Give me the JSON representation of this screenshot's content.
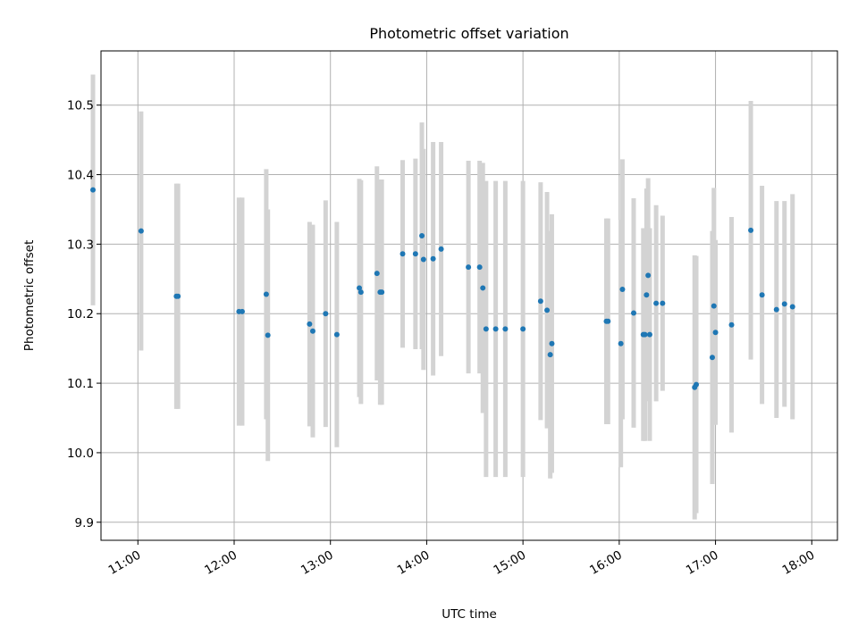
{
  "chart_data": {
    "type": "scatter",
    "title": "Photometric offset variation",
    "xlabel": "UTC time",
    "ylabel": "Photometric offset",
    "x_tick_labels": [
      "11:00",
      "12:00",
      "13:00",
      "14:00",
      "15:00",
      "16:00",
      "17:00",
      "18:00"
    ],
    "y_tick_labels": [
      "9.9",
      "10.0",
      "10.1",
      "10.2",
      "10.3",
      "10.4",
      "10.5"
    ],
    "xlim": [
      "10:37",
      "18:16"
    ],
    "ylim": [
      9.874,
      10.578
    ],
    "grid": true,
    "legend": "none",
    "marker_color": "#1f77b4",
    "errorbar_color": "#d3d3d3",
    "series": [
      {
        "x": [
          "10:32",
          "11:02",
          "11:24",
          "11:25",
          "12:03",
          "12:05",
          "12:20",
          "12:21",
          "12:47",
          "12:49",
          "12:57",
          "13:04",
          "13:18",
          "13:19",
          "13:29",
          "13:31",
          "13:32",
          "13:45",
          "13:53",
          "13:57",
          "13:58",
          "14:04",
          "14:09",
          "14:26",
          "14:33",
          "14:35",
          "14:37",
          "14:43",
          "14:49",
          "15:00",
          "15:11",
          "15:15",
          "15:17",
          "15:18",
          "15:52",
          "15:53",
          "16:01",
          "16:02",
          "16:09",
          "16:15",
          "16:16",
          "16:17",
          "16:18",
          "16:19",
          "16:23",
          "16:27",
          "16:47",
          "16:48",
          "16:58",
          "16:59",
          "17:00",
          "17:10",
          "17:22",
          "17:29",
          "17:38",
          "17:43",
          "17:48"
        ],
        "y": [
          10.378,
          10.319,
          10.225,
          10.225,
          10.203,
          10.203,
          10.228,
          10.169,
          10.185,
          10.175,
          10.2,
          10.17,
          10.237,
          10.231,
          10.258,
          10.231,
          10.231,
          10.286,
          10.286,
          10.312,
          10.278,
          10.279,
          10.293,
          10.267,
          10.267,
          10.237,
          10.178,
          10.178,
          10.178,
          10.178,
          10.218,
          10.205,
          10.141,
          10.157,
          10.189,
          10.189,
          10.157,
          10.235,
          10.201,
          10.17,
          10.17,
          10.227,
          10.255,
          10.17,
          10.215,
          10.215,
          10.094,
          10.098,
          10.137,
          10.211,
          10.173,
          10.184,
          10.32,
          10.227,
          10.206,
          10.214,
          10.21
        ],
        "err": [
          0.166,
          0.172,
          0.162,
          0.162,
          0.164,
          0.164,
          0.18,
          0.181,
          0.147,
          0.153,
          0.163,
          0.162,
          0.157,
          0.161,
          0.154,
          0.162,
          0.162,
          0.135,
          0.137,
          0.163,
          0.159,
          0.168,
          0.154,
          0.153,
          0.153,
          0.18,
          0.213,
          0.213,
          0.213,
          0.213,
          0.171,
          0.17,
          0.178,
          0.186,
          0.148,
          0.148,
          0.178,
          0.187,
          0.165,
          0.153,
          0.153,
          0.153,
          0.14,
          0.153,
          0.141,
          0.126,
          0.19,
          0.185,
          0.182,
          0.17,
          0.133,
          0.155,
          0.186,
          0.157,
          0.156,
          0.148,
          0.162
        ]
      }
    ]
  }
}
